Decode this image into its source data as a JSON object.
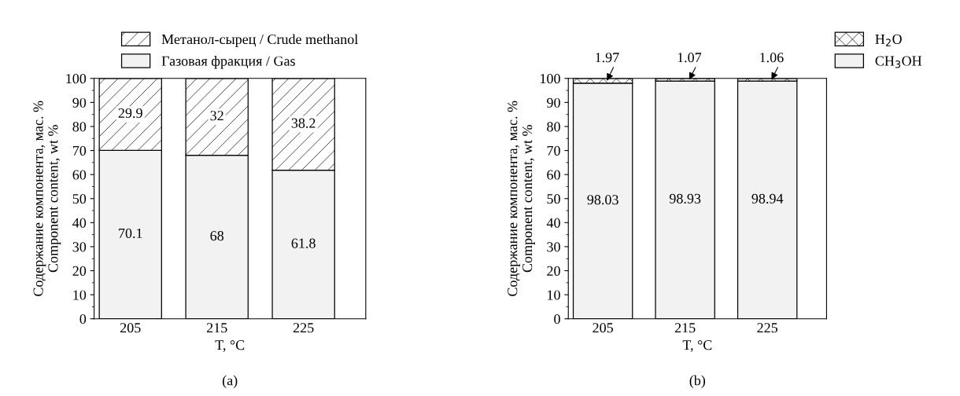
{
  "chart_data": [
    {
      "type": "bar",
      "stacked": true,
      "categories": [
        "205",
        "215",
        "225"
      ],
      "xlabel": "T, °C",
      "ylabel": "Содержание компонента, мас. %\nComponent content, wt %",
      "ylim": [
        0,
        100
      ],
      "yticks": [
        0,
        10,
        20,
        30,
        40,
        50,
        60,
        70,
        80,
        90,
        100
      ],
      "legend": "top",
      "grid": false,
      "data_labels": true,
      "annotations": [
        "(a)"
      ],
      "series": [
        {
          "name": "Газовая фракция / Gas",
          "color": "#f2f2f2",
          "values": [
            70.1,
            68,
            61.8
          ]
        },
        {
          "name": "Метанол-сырец / Crude methanol",
          "color": "#000000",
          "values": [
            29.9,
            32,
            38.2
          ]
        }
      ]
    },
    {
      "type": "bar",
      "stacked": true,
      "categories": [
        "205",
        "215",
        "225"
      ],
      "xlabel": "T, °C",
      "ylabel": "Содержание компонента, мас. %\nComponent content, wt %",
      "ylim": [
        0,
        100
      ],
      "yticks": [
        0,
        10,
        20,
        30,
        40,
        50,
        60,
        70,
        80,
        90,
        100
      ],
      "legend": "top right",
      "grid": false,
      "data_labels": true,
      "annotations": [
        "(b)"
      ],
      "series": [
        {
          "name": "CH$_{3}$OH",
          "color": "#f2f2f2",
          "values": [
            98.03,
            98.93,
            98.94
          ]
        },
        {
          "name": "H$_{2}$O",
          "color": "#000000",
          "values": [
            1.97,
            1.07,
            1.06
          ]
        }
      ]
    }
  ]
}
